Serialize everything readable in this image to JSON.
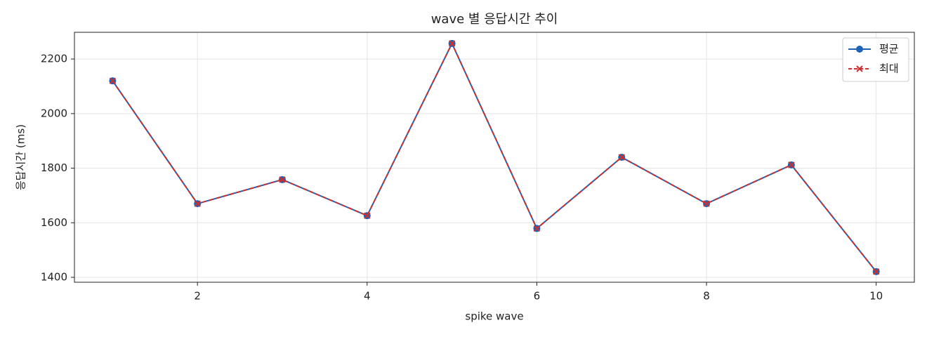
{
  "chart_data": {
    "type": "line",
    "title": "wave 별 응답시간 추이",
    "x_label": "spike wave",
    "y_label": "응답시간 (ms)",
    "x": [
      1,
      2,
      3,
      4,
      5,
      6,
      7,
      8,
      9,
      10
    ],
    "series": [
      {
        "name": "평균",
        "color": "#1f63b8",
        "values": [
          2120,
          1670,
          1758,
          1626,
          2257,
          1579,
          1840,
          1670,
          1812,
          1421
        ]
      },
      {
        "name": "최대",
        "color": "#c8312f",
        "values": [
          2120,
          1670,
          1758,
          1626,
          2257,
          1579,
          1840,
          1670,
          1812,
          1421
        ]
      }
    ],
    "xlim": [
      0.55,
      10.45
    ],
    "xticks": [
      2,
      4,
      6,
      8,
      10
    ],
    "ylim": [
      1382,
      2298
    ],
    "yticks": [
      1400,
      1600,
      1800,
      2000,
      2200
    ],
    "grid": true,
    "legend": "upper right"
  }
}
